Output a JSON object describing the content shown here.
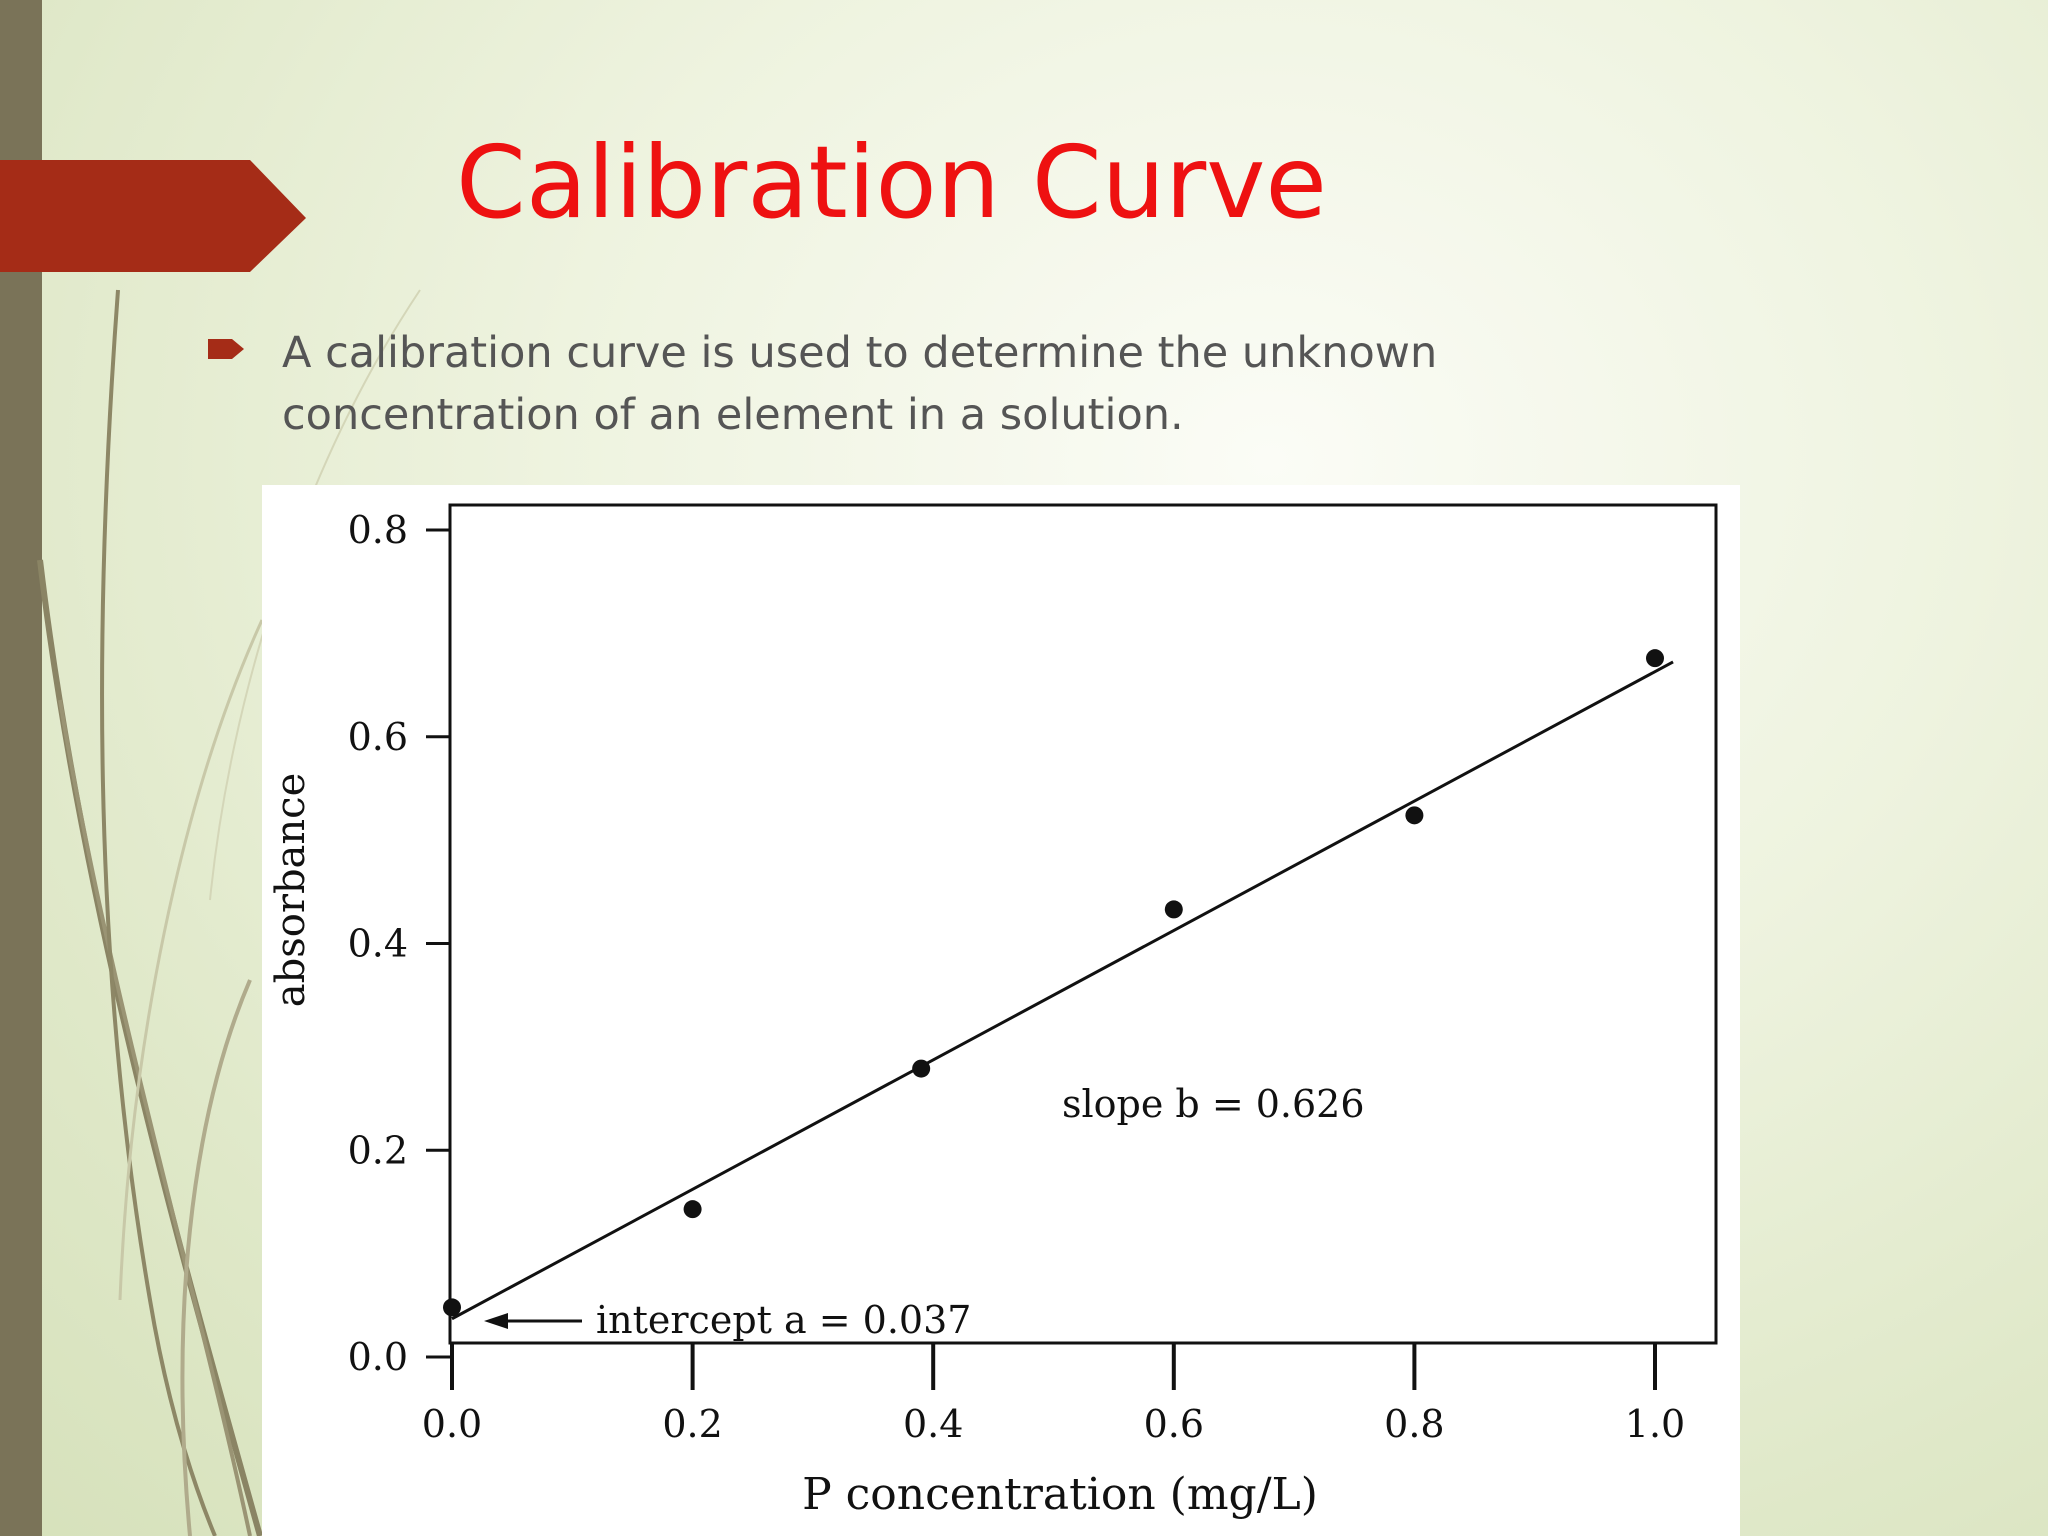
{
  "slide": {
    "title": "Calibration Curve",
    "bullet_text": "A calibration curve is used to determine the unknown concentration of an element in a solution.",
    "colors": {
      "title": "#ee1111",
      "accent_tab": "#a52c17",
      "left_bar": "#7a7358",
      "bullet": "#a52c17",
      "body_text": "#555555"
    },
    "bullet_icon": "arrow-right-icon"
  },
  "chart_data": {
    "type": "scatter",
    "xlabel": "P concentration (mg/L)",
    "ylabel": "absorbance",
    "xlim": [
      0.0,
      1.0
    ],
    "ylim": [
      0.0,
      0.8
    ],
    "x_ticks": [
      "0.0",
      "0.2",
      "0.4",
      "0.6",
      "0.8",
      "1.0"
    ],
    "y_ticks": [
      "0.0",
      "0.2",
      "0.4",
      "0.6",
      "0.8"
    ],
    "points": [
      {
        "x": 0.0,
        "y": 0.048
      },
      {
        "x": 0.2,
        "y": 0.143
      },
      {
        "x": 0.39,
        "y": 0.279
      },
      {
        "x": 0.6,
        "y": 0.433
      },
      {
        "x": 0.8,
        "y": 0.524
      },
      {
        "x": 1.0,
        "y": 0.676
      }
    ],
    "fit_line": {
      "intercept": 0.037,
      "slope": 0.626,
      "x_range": [
        0.0,
        1.015
      ]
    },
    "annotations": {
      "slope_text": "slope b = 0.626",
      "intercept_text": "intercept a = 0.037"
    },
    "grid": false
  }
}
